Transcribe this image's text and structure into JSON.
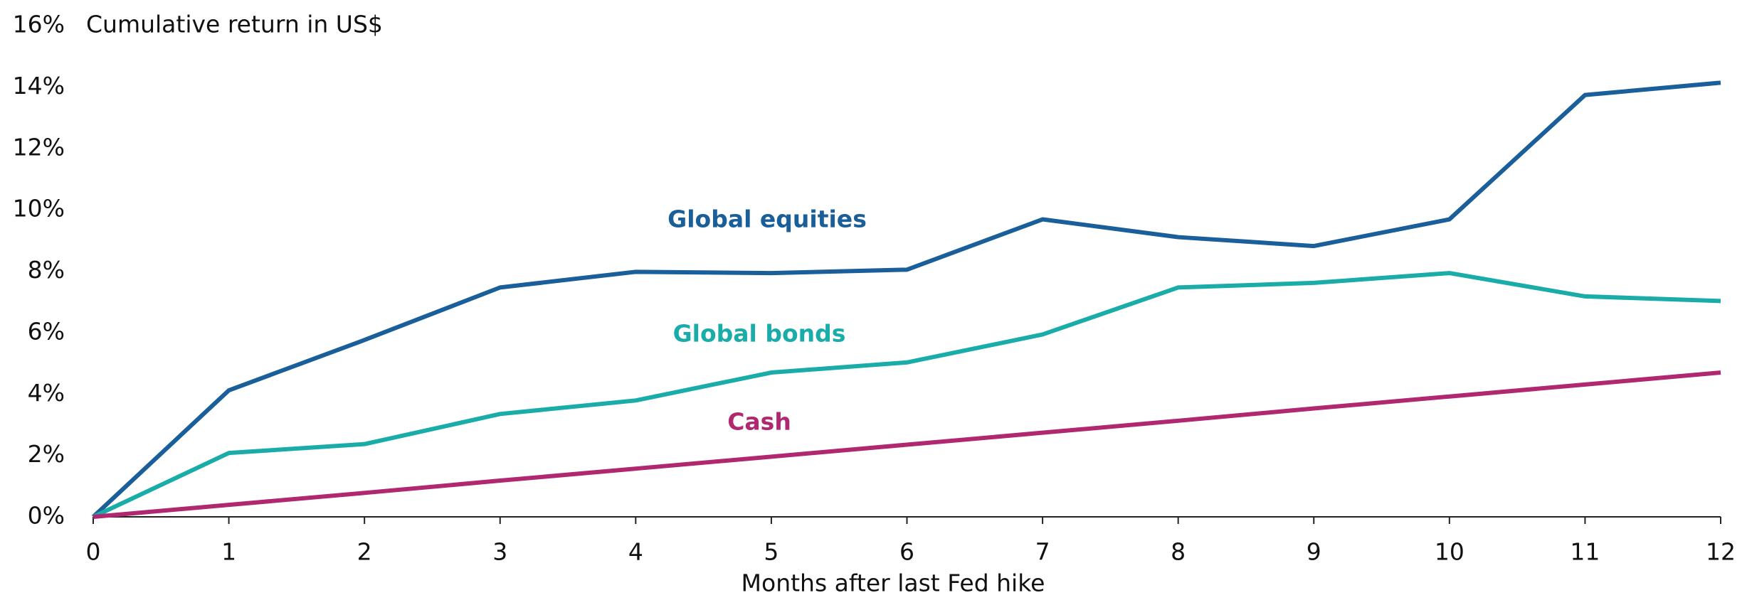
{
  "chart_data": {
    "type": "line",
    "title": "Cumulative return in US$",
    "x_label": "Months after last Fed hike",
    "x": [
      0,
      1,
      2,
      3,
      4,
      5,
      6,
      7,
      8,
      9,
      10,
      11,
      12
    ],
    "series": [
      {
        "name": "Global equities",
        "color": "#1a5f99",
        "values": [
          0,
          4.12,
          5.76,
          7.47,
          7.98,
          7.94,
          8.05,
          9.69,
          9.11,
          8.82,
          9.69,
          13.74,
          14.14
        ]
      },
      {
        "name": "Global bonds",
        "color": "#1aaca8",
        "values": [
          0,
          2.08,
          2.37,
          3.35,
          3.79,
          4.7,
          5.03,
          5.94,
          7.47,
          7.62,
          7.94,
          7.18,
          7.03
        ]
      },
      {
        "name": "Cash",
        "color": "#b0286f",
        "values": [
          0,
          0.39,
          0.78,
          1.18,
          1.57,
          1.96,
          2.35,
          2.74,
          3.13,
          3.53,
          3.92,
          4.31,
          4.7
        ]
      }
    ],
    "xlim": [
      0,
      12
    ],
    "xticks": [
      0,
      1,
      2,
      3,
      4,
      5,
      6,
      7,
      8,
      9,
      10,
      11,
      12
    ],
    "ylim": [
      0,
      16
    ],
    "yticks": [
      {
        "value": 0,
        "label": "0%"
      },
      {
        "value": 2,
        "label": "2%"
      },
      {
        "value": 4,
        "label": "4%"
      },
      {
        "value": 6,
        "label": "6%"
      },
      {
        "value": 8,
        "label": "8%"
      },
      {
        "value": 10,
        "label": "10%"
      },
      {
        "value": 12,
        "label": "12%"
      },
      {
        "value": 14,
        "label": "14%"
      },
      {
        "value": 16,
        "label": "16%"
      }
    ],
    "grid": false
  }
}
